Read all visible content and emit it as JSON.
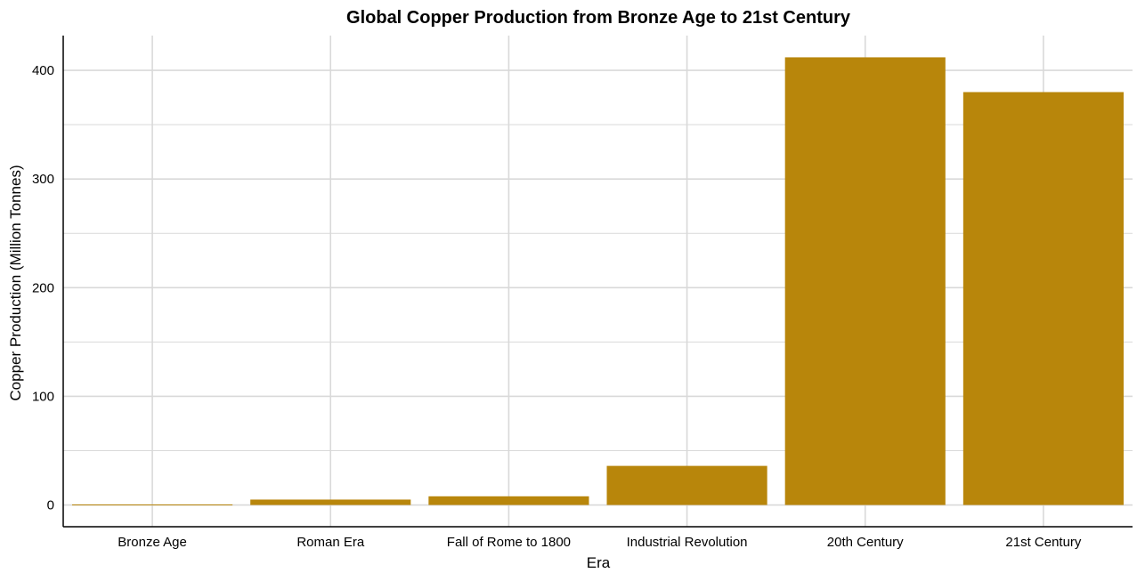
{
  "chart_data": {
    "type": "bar",
    "title": "Global Copper Production from Bronze Age to 21st Century",
    "xlabel": "Era",
    "ylabel": "Copper Production (Million Tonnes)",
    "categories": [
      "Bronze Age",
      "Roman Era",
      "Fall of Rome to 1800",
      "Industrial Revolution",
      "20th Century",
      "21st Century"
    ],
    "values": [
      0.5,
      5,
      8,
      36,
      412,
      380
    ],
    "ylim": [
      -20,
      432
    ],
    "yticks": [
      0,
      100,
      200,
      300,
      400
    ],
    "ytick_labels": [
      "0",
      "100",
      "200",
      "300",
      "400"
    ],
    "grid": true,
    "colors": {
      "bar": "#B8860B",
      "grid": "#D9D9D9",
      "axis": "#000000"
    }
  }
}
